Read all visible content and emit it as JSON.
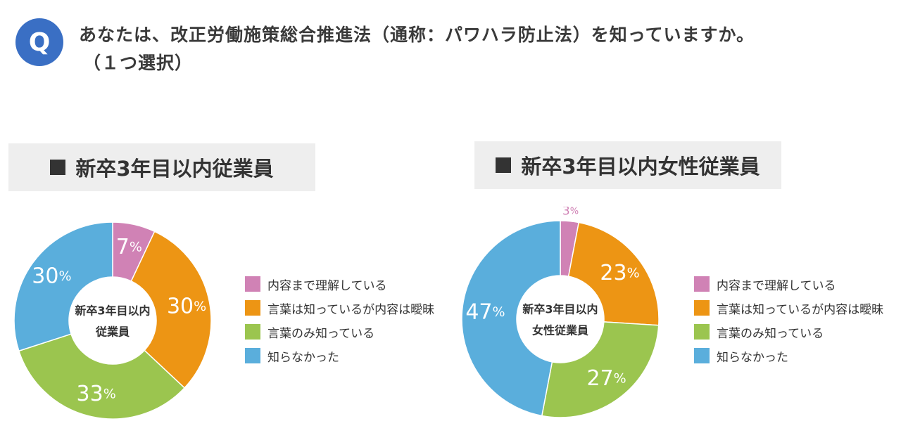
{
  "question": {
    "badge": "Q",
    "line1": "あなたは、改正労働施策総合推進法（通称：パワハラ防止法）を知っていますか。",
    "line2": "（１つ選択）"
  },
  "legend_labels": [
    "内容まで理解している",
    "言葉は知っているが内容は曖昧",
    "言葉のみ知っている",
    "知らなかった"
  ],
  "colors": {
    "understand": "#d082b5",
    "vague": "#ed9514",
    "word_only": "#9bc54f",
    "unknown": "#5aaedc"
  },
  "chart_data": [
    {
      "type": "pie",
      "title": "新卒3年目以内従業員",
      "center_label": [
        "新卒3年目以内",
        "従業員"
      ],
      "series": [
        {
          "name": "内容まで理解している",
          "value": 7,
          "label": "7",
          "color": "#d082b5"
        },
        {
          "name": "言葉は知っているが内容は曖昧",
          "value": 30,
          "label": "30",
          "color": "#ed9514"
        },
        {
          "name": "言葉のみ知っている",
          "value": 33,
          "label": "33",
          "color": "#9bc54f"
        },
        {
          "name": "知らなかった",
          "value": 30,
          "label": "30",
          "color": "#5aaedc"
        }
      ],
      "unit": "%"
    },
    {
      "type": "pie",
      "title": "新卒3年目以内女性従業員",
      "center_label": [
        "新卒3年目以内",
        "女性従業員"
      ],
      "series": [
        {
          "name": "内容まで理解している",
          "value": 3,
          "label": "3",
          "color": "#d082b5"
        },
        {
          "name": "言葉は知っているが内容は曖昧",
          "value": 23,
          "label": "23",
          "color": "#ed9514"
        },
        {
          "name": "言葉のみ知っている",
          "value": 27,
          "label": "27",
          "color": "#9bc54f"
        },
        {
          "name": "知らなかった",
          "value": 47,
          "label": "47",
          "color": "#5aaedc"
        }
      ],
      "unit": "%"
    }
  ]
}
